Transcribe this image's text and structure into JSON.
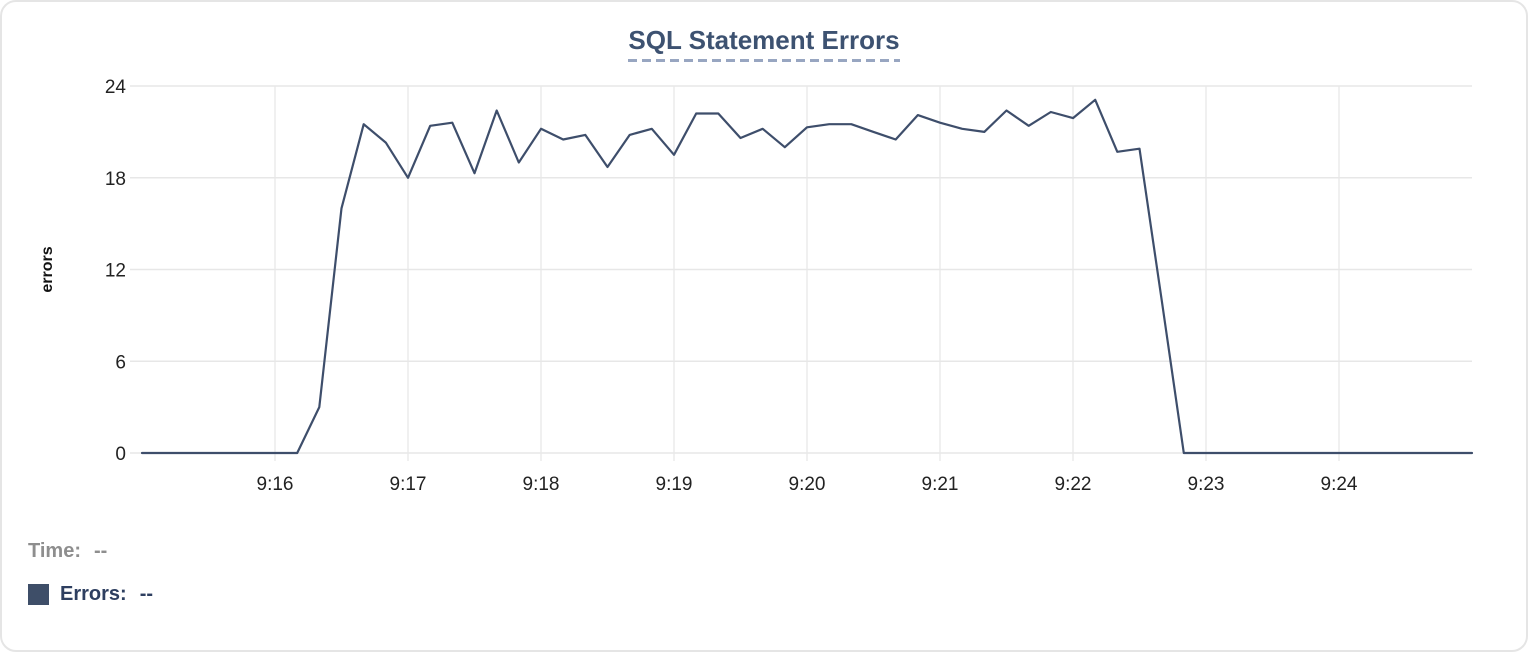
{
  "chart_data": {
    "type": "line",
    "title": "SQL Statement Errors",
    "xlabel": "",
    "ylabel": "errors",
    "x_start_time": "9:15:00",
    "x_end_time": "9:25:00",
    "interval_seconds": 10,
    "ylim": [
      0,
      24
    ],
    "grid": true,
    "y_ticks": [
      0,
      6,
      12,
      18,
      24
    ],
    "x_ticks": [
      {
        "label": "9:16",
        "t": 60
      },
      {
        "label": "9:17",
        "t": 120
      },
      {
        "label": "9:18",
        "t": 180
      },
      {
        "label": "9:19",
        "t": 240
      },
      {
        "label": "9:20",
        "t": 300
      },
      {
        "label": "9:21",
        "t": 360
      },
      {
        "label": "9:22",
        "t": 420
      },
      {
        "label": "9:23",
        "t": 480
      },
      {
        "label": "9:24",
        "t": 540
      }
    ],
    "series": [
      {
        "name": "Errors",
        "color": "#3E4E6B",
        "values": [
          0,
          0,
          0,
          0,
          0,
          0,
          0,
          0,
          3,
          16,
          21.5,
          20.3,
          18,
          21.4,
          21.6,
          18.3,
          22.4,
          19,
          21.2,
          20.5,
          20.8,
          18.7,
          20.8,
          21.2,
          19.5,
          22.2,
          22.2,
          20.6,
          21.2,
          20,
          21.3,
          21.5,
          21.5,
          21,
          20.5,
          22.1,
          21.6,
          21.2,
          21,
          22.4,
          21.4,
          22.3,
          21.9,
          23.1,
          19.7,
          19.9,
          10,
          0,
          0,
          0,
          0,
          0,
          0,
          0,
          0,
          0,
          0,
          0,
          0,
          0,
          0
        ]
      }
    ],
    "legend_position": "bottom-left"
  },
  "legend": {
    "rows": [
      {
        "label": "Time:",
        "value": "--",
        "color": "#8E8E8E",
        "swatch": null
      },
      {
        "label": "Errors:",
        "value": "--",
        "color": "#2E3F60",
        "swatch": "#3E4E68"
      }
    ]
  },
  "colors": {
    "title": "#3D5271",
    "title_underline": "#98A6C1",
    "grid_h": "#e7e7e7",
    "grid_v": "#ececec",
    "tick_text": "#222222",
    "axis_title": "#111111"
  }
}
